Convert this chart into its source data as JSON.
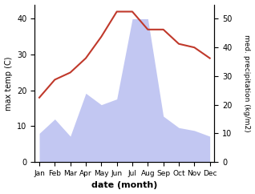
{
  "months": [
    "Jan",
    "Feb",
    "Mar",
    "Apr",
    "May",
    "Jun",
    "Jul",
    "Aug",
    "Sep",
    "Oct",
    "Nov",
    "Dec"
  ],
  "temperature": [
    18,
    23,
    25,
    29,
    35,
    42,
    42,
    37,
    37,
    33,
    32,
    29
  ],
  "precipitation": [
    10,
    15,
    9,
    24,
    20,
    22,
    50,
    50,
    16,
    12,
    11,
    9
  ],
  "temp_color": "#c0392b",
  "precip_fill_color": "#b8bef0",
  "temp_ylim": [
    0,
    44
  ],
  "precip_ylim": [
    0,
    55
  ],
  "temp_yticks": [
    0,
    10,
    20,
    30,
    40
  ],
  "precip_yticks": [
    0,
    10,
    20,
    30,
    40,
    50
  ],
  "ylabel_left": "max temp (C)",
  "ylabel_right": "med. precipitation (kg/m2)",
  "xlabel": "date (month)",
  "figsize": [
    3.18,
    2.42
  ],
  "dpi": 100
}
